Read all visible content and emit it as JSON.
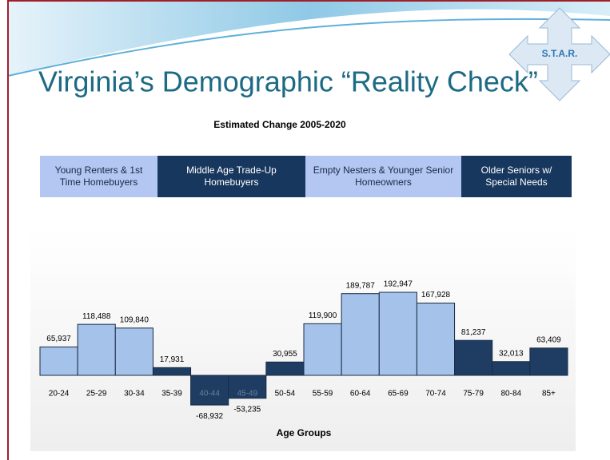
{
  "logo": "S.T.A.R.",
  "chart_data": {
    "type": "bar",
    "title": "Virginia’s Demographic “Reality Check”",
    "subtitle": "Estimated Change  2005-2020",
    "groups": [
      {
        "label": "Young Renters & 1st Time Homebuyers",
        "color": "#b4c6f2"
      },
      {
        "label": "Middle Age Trade-Up Homebuyers",
        "color": "#17375e"
      },
      {
        "label": "Empty Nesters & Younger Senior Homeowners",
        "color": "#b4c6f2"
      },
      {
        "label": "Older Seniors w/ Special Needs",
        "color": "#17375e"
      }
    ],
    "categories": [
      "20-24",
      "25-29",
      "30-34",
      "35-39",
      "40-44",
      "45-49",
      "50-54",
      "55-59",
      "60-64",
      "65-69",
      "70-74",
      "75-79",
      "80-84",
      "85+"
    ],
    "values": [
      65937,
      118488,
      109840,
      17931,
      -68932,
      -53235,
      30955,
      119900,
      189787,
      192947,
      167928,
      81237,
      32013,
      63409
    ],
    "value_labels": [
      "65,937",
      "118,488",
      "109,840",
      "17,931",
      "-68,932",
      "-53,235",
      "30,955",
      "119,900",
      "189,787",
      "192,947",
      "167,928",
      "81,237",
      "32,013",
      "63,409"
    ],
    "colors": [
      "#a4c2ea",
      "#a4c2ea",
      "#a4c2ea",
      "#1f3d63",
      "#1f3d63",
      "#1f3d63",
      "#1f3d63",
      "#a4c2ea",
      "#a4c2ea",
      "#a4c2ea",
      "#a4c2ea",
      "#1f3d63",
      "#1f3d63",
      "#1f3d63"
    ],
    "xlabel": "Age Groups"
  }
}
